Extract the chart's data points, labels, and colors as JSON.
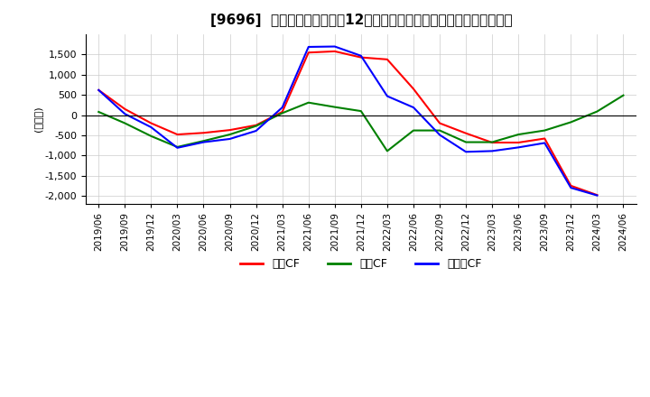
{
  "title": "[9696]  キャッシュフローの12か月移動合計の対前年同期増減額の推移",
  "ylabel": "(百万円)",
  "ylim": [
    -2200,
    2000
  ],
  "yticks": [
    -2000,
    -1500,
    -1000,
    -500,
    0,
    500,
    1000,
    1500
  ],
  "legend_labels": [
    "営業CF",
    "投資CF",
    "フリーCF"
  ],
  "colors": [
    "#ff0000",
    "#008000",
    "#0000ff"
  ],
  "dates": [
    "2019/06",
    "2019/09",
    "2019/12",
    "2020/03",
    "2020/06",
    "2020/09",
    "2020/12",
    "2021/03",
    "2021/06",
    "2021/09",
    "2021/12",
    "2022/03",
    "2022/06",
    "2022/09",
    "2022/12",
    "2023/03",
    "2023/06",
    "2023/09",
    "2023/12",
    "2024/03",
    "2024/06"
  ],
  "sales_cf": [
    620,
    150,
    -200,
    -480,
    -440,
    -370,
    -250,
    80,
    1550,
    1580,
    1430,
    1380,
    650,
    -200,
    -450,
    -680,
    -680,
    -580,
    -1750,
    -1980,
    null
  ],
  "invest_cf": [
    80,
    -200,
    -520,
    -790,
    -640,
    -480,
    -270,
    50,
    310,
    200,
    100,
    -890,
    -380,
    -380,
    -670,
    -670,
    -480,
    -380,
    -175,
    90,
    490
  ],
  "free_cf": [
    620,
    30,
    -300,
    -810,
    -670,
    -590,
    -390,
    190,
    1690,
    1700,
    1470,
    470,
    190,
    -490,
    -910,
    -890,
    -800,
    -690,
    -1800,
    -1990,
    null
  ]
}
